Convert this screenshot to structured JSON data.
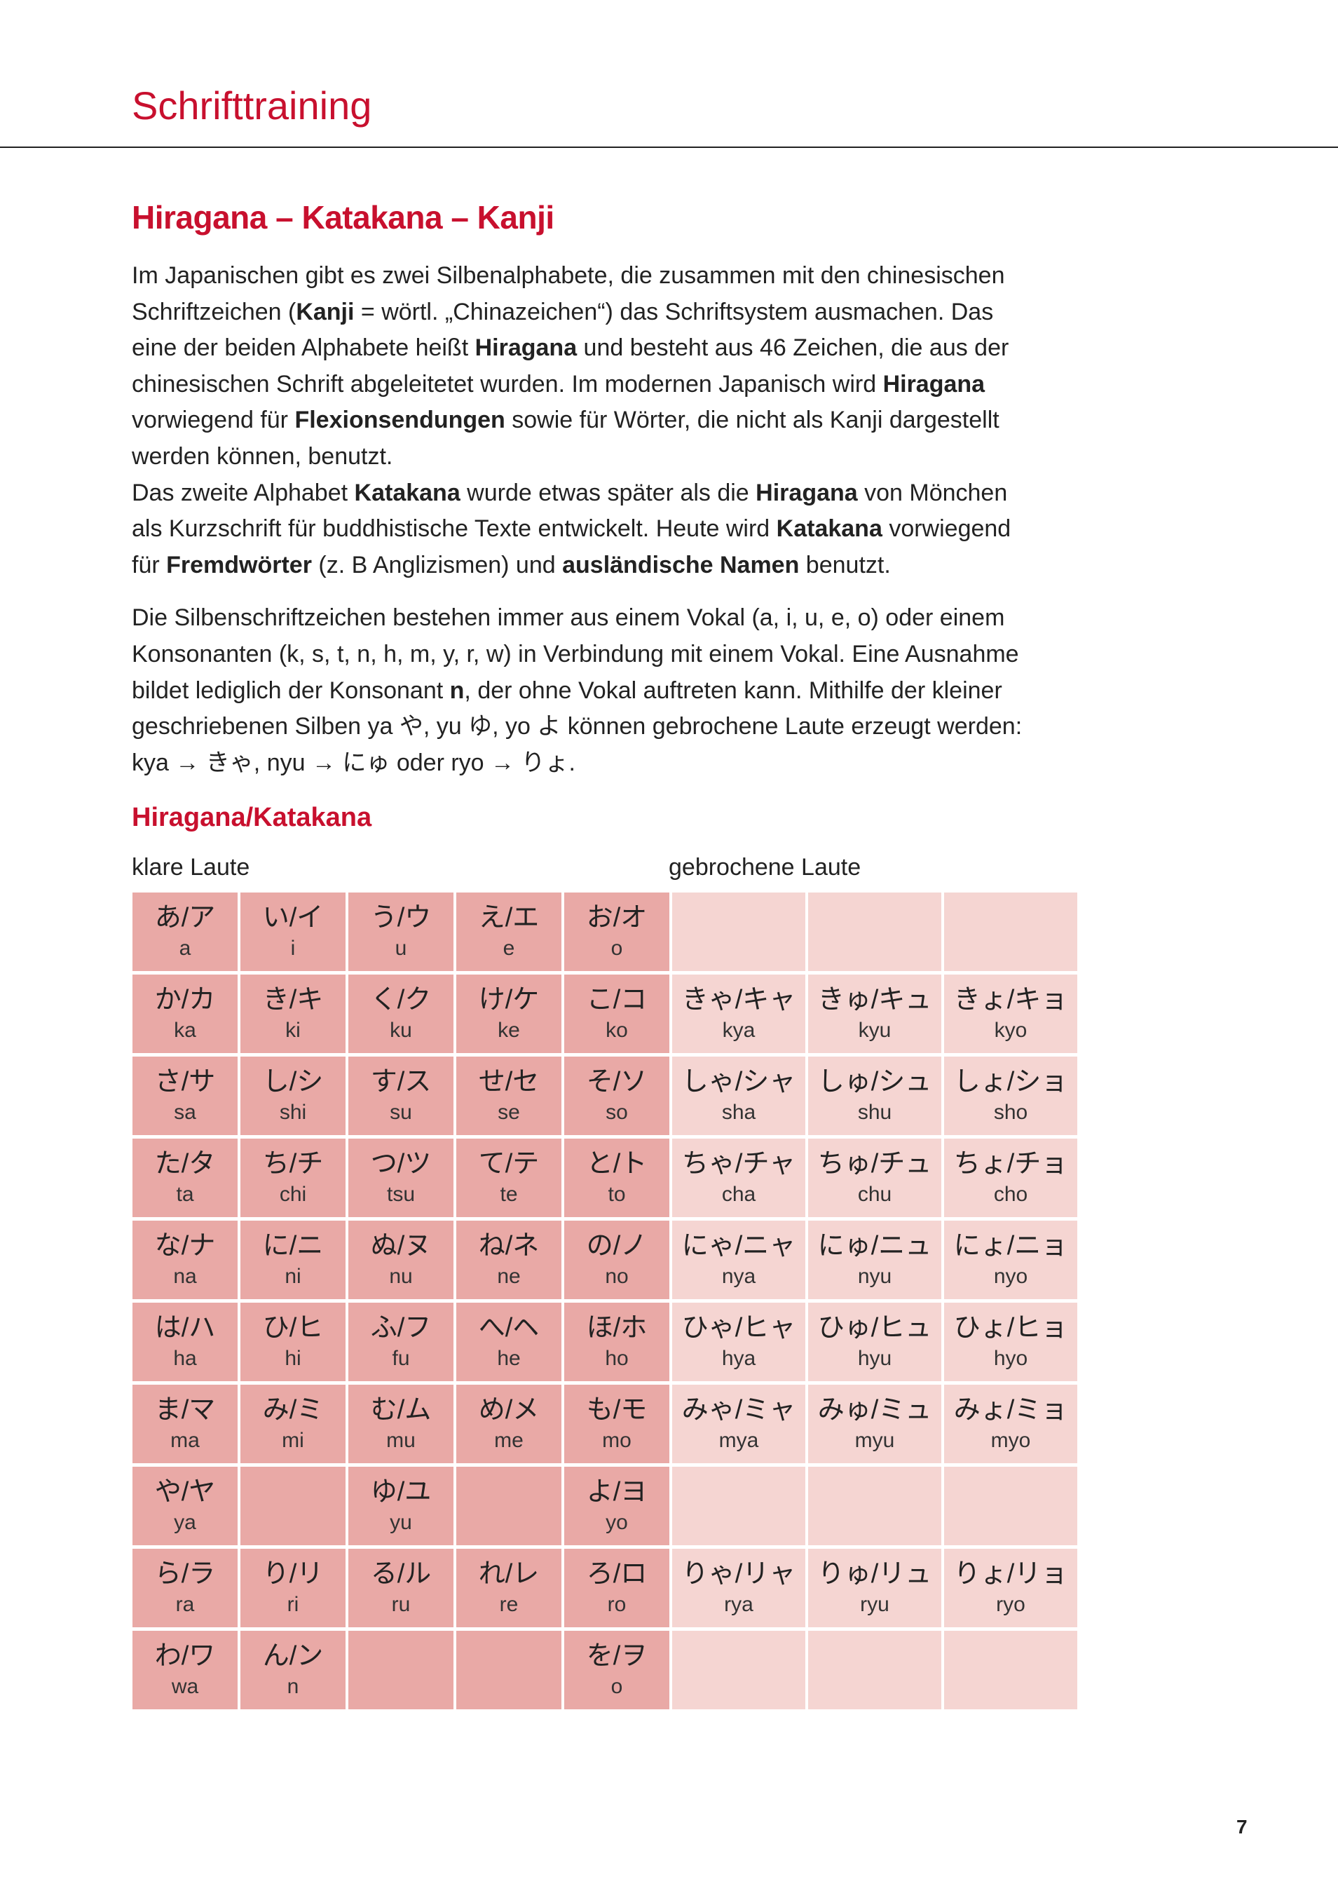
{
  "header": {
    "title": "Schrifttraining"
  },
  "section": {
    "title": "Hiragana – Katakana – Kanji"
  },
  "body_lines": [
    [
      {
        "t": "Im Japanischen gibt es zwei Silbenalphabete, die zusammen mit den chinesischen"
      }
    ],
    [
      {
        "t": "Schriftzeichen ("
      },
      {
        "t": "Kanji",
        "b": true
      },
      {
        "t": " = wörtl. „Chinazeichen“) das Schriftsystem ausmachen. Das"
      }
    ],
    [
      {
        "t": "eine der beiden Alphabete heißt "
      },
      {
        "t": "Hiragana",
        "b": true
      },
      {
        "t": " und besteht aus 46 Zeichen, die aus der"
      }
    ],
    [
      {
        "t": "chinesischen Schrift abgeleitetet wurden. Im modernen Japanisch wird "
      },
      {
        "t": "Hiragana",
        "b": true
      }
    ],
    [
      {
        "t": "vorwiegend für "
      },
      {
        "t": "Flexionsendungen",
        "b": true
      },
      {
        "t": " sowie für Wörter, die nicht als Kanji dargestellt"
      }
    ],
    [
      {
        "t": "werden können, benutzt."
      }
    ],
    [
      {
        "t": "Das zweite Alphabet "
      },
      {
        "t": "Katakana",
        "b": true
      },
      {
        "t": " wurde etwas später als die "
      },
      {
        "t": "Hiragana",
        "b": true
      },
      {
        "t": " von Mönchen"
      }
    ],
    [
      {
        "t": "als Kurzschrift für buddhistische Texte entwickelt. Heute wird "
      },
      {
        "t": "Katakana",
        "b": true
      },
      {
        "t": " vorwiegend"
      }
    ],
    [
      {
        "t": "für "
      },
      {
        "t": "Fremdwörter",
        "b": true
      },
      {
        "t": " (z. B Anglizismen) und "
      },
      {
        "t": "ausländische Namen",
        "b": true
      },
      {
        "t": " benutzt."
      }
    ],
    "gap",
    [
      {
        "t": "Die Silbenschriftzeichen bestehen immer aus einem Vokal (a, i, u, e, o) oder einem"
      }
    ],
    [
      {
        "t": "Konsonanten (k, s, t, n, h, m, y, r, w) in Verbindung mit einem Vokal. Eine Ausnahme"
      }
    ],
    [
      {
        "t": "bildet lediglich der Konsonant "
      },
      {
        "t": "n",
        "b": true
      },
      {
        "t": ", der ohne Vokal auftreten kann. Mithilfe der kleiner"
      }
    ],
    [
      {
        "t": "geschriebenen Silben ya や, yu ゆ, yo よ können gebrochene Laute erzeugt werden:"
      }
    ],
    [
      {
        "t": "kya → きゃ, nyu → にゅ oder ryo → りょ."
      }
    ]
  ],
  "table_section": {
    "title": "Hiragana/Katakana",
    "clear_label": "klare Laute",
    "broken_label": "gebrochene Laute"
  },
  "colors": {
    "accent": "#c8102e",
    "clear_cell": "#e9a9a6",
    "broken_cell": "#f5d5d2"
  },
  "table": [
    [
      [
        "あ/ア",
        "a"
      ],
      [
        "い/イ",
        "i"
      ],
      [
        "う/ウ",
        "u"
      ],
      [
        "え/エ",
        "e"
      ],
      [
        "お/オ",
        "o"
      ],
      [
        "",
        ""
      ],
      [
        "",
        ""
      ],
      [
        "",
        ""
      ]
    ],
    [
      [
        "か/カ",
        "ka"
      ],
      [
        "き/キ",
        "ki"
      ],
      [
        "く/ク",
        "ku"
      ],
      [
        "け/ケ",
        "ke"
      ],
      [
        "こ/コ",
        "ko"
      ],
      [
        "きゃ/キャ",
        "kya"
      ],
      [
        "きゅ/キュ",
        "kyu"
      ],
      [
        "きょ/キョ",
        "kyo"
      ]
    ],
    [
      [
        "さ/サ",
        "sa"
      ],
      [
        "し/シ",
        "shi"
      ],
      [
        "す/ス",
        "su"
      ],
      [
        "せ/セ",
        "se"
      ],
      [
        "そ/ソ",
        "so"
      ],
      [
        "しゃ/シャ",
        "sha"
      ],
      [
        "しゅ/シュ",
        "shu"
      ],
      [
        "しょ/ショ",
        "sho"
      ]
    ],
    [
      [
        "た/タ",
        "ta"
      ],
      [
        "ち/チ",
        "chi"
      ],
      [
        "つ/ツ",
        "tsu"
      ],
      [
        "て/テ",
        "te"
      ],
      [
        "と/ト",
        "to"
      ],
      [
        "ちゃ/チャ",
        "cha"
      ],
      [
        "ちゅ/チュ",
        "chu"
      ],
      [
        "ちょ/チョ",
        "cho"
      ]
    ],
    [
      [
        "な/ナ",
        "na"
      ],
      [
        "に/ニ",
        "ni"
      ],
      [
        "ぬ/ヌ",
        "nu"
      ],
      [
        "ね/ネ",
        "ne"
      ],
      [
        "の/ノ",
        "no"
      ],
      [
        "にゃ/ニャ",
        "nya"
      ],
      [
        "にゅ/ニュ",
        "nyu"
      ],
      [
        "にょ/ニョ",
        "nyo"
      ]
    ],
    [
      [
        "は/ハ",
        "ha"
      ],
      [
        "ひ/ヒ",
        "hi"
      ],
      [
        "ふ/フ",
        "fu"
      ],
      [
        "へ/ヘ",
        "he"
      ],
      [
        "ほ/ホ",
        "ho"
      ],
      [
        "ひゃ/ヒャ",
        "hya"
      ],
      [
        "ひゅ/ヒュ",
        "hyu"
      ],
      [
        "ひょ/ヒョ",
        "hyo"
      ]
    ],
    [
      [
        "ま/マ",
        "ma"
      ],
      [
        "み/ミ",
        "mi"
      ],
      [
        "む/ム",
        "mu"
      ],
      [
        "め/メ",
        "me"
      ],
      [
        "も/モ",
        "mo"
      ],
      [
        "みゃ/ミャ",
        "mya"
      ],
      [
        "みゅ/ミュ",
        "myu"
      ],
      [
        "みょ/ミョ",
        "myo"
      ]
    ],
    [
      [
        "や/ヤ",
        "ya"
      ],
      [
        "",
        ""
      ],
      [
        "ゆ/ユ",
        "yu"
      ],
      [
        "",
        ""
      ],
      [
        "よ/ヨ",
        "yo"
      ],
      [
        "",
        ""
      ],
      [
        "",
        ""
      ],
      [
        "",
        ""
      ]
    ],
    [
      [
        "ら/ラ",
        "ra"
      ],
      [
        "り/リ",
        "ri"
      ],
      [
        "る/ル",
        "ru"
      ],
      [
        "れ/レ",
        "re"
      ],
      [
        "ろ/ロ",
        "ro"
      ],
      [
        "りゃ/リャ",
        "rya"
      ],
      [
        "りゅ/リュ",
        "ryu"
      ],
      [
        "りょ/リョ",
        "ryo"
      ]
    ],
    [
      [
        "わ/ワ",
        "wa"
      ],
      [
        "ん/ン",
        "n"
      ],
      [
        "",
        ""
      ],
      [
        "",
        ""
      ],
      [
        "を/ヲ",
        "o"
      ],
      [
        "",
        ""
      ],
      [
        "",
        ""
      ],
      [
        "",
        ""
      ]
    ]
  ],
  "footer": {
    "page_number": "7"
  }
}
